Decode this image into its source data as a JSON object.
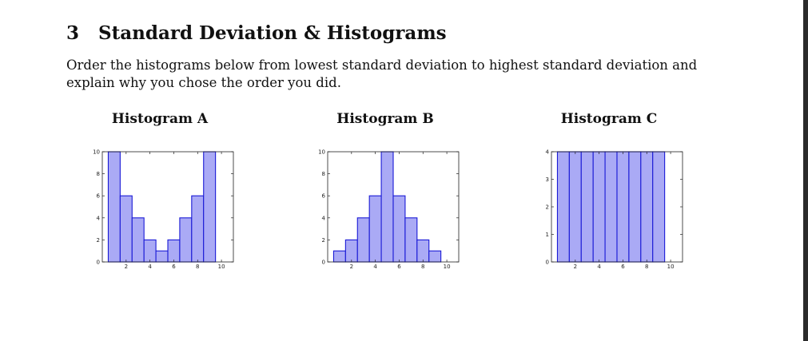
{
  "section": {
    "number": "3",
    "title": "Standard Deviation & Histograms",
    "prompt": "Order the histograms below from lowest standard deviation to highest standard deviation and explain why you chose the order you did."
  },
  "colors": {
    "bar_fill": "#aaaaf5",
    "bar_stroke": "#1a1ad6",
    "axis": "#222222",
    "edge_bar": "#2b2b2b"
  },
  "chart_data": [
    {
      "type": "bar",
      "title": "Histogram A",
      "x": [
        1,
        2,
        3,
        4,
        5,
        6,
        7,
        8,
        9
      ],
      "values": [
        10,
        6,
        4,
        2,
        1,
        2,
        4,
        6,
        10
      ],
      "xlim": [
        0,
        11
      ],
      "ylim": [
        0,
        10
      ],
      "xticks": [
        "2",
        "4",
        "6",
        "8",
        "10"
      ],
      "yticks": [
        "0",
        "2",
        "4",
        "6",
        "8",
        "10"
      ]
    },
    {
      "type": "bar",
      "title": "Histogram B",
      "x": [
        1,
        2,
        3,
        4,
        5,
        6,
        7,
        8,
        9
      ],
      "values": [
        1,
        2,
        4,
        6,
        10,
        6,
        4,
        2,
        1
      ],
      "xlim": [
        0,
        11
      ],
      "ylim": [
        0,
        10
      ],
      "xticks": [
        "2",
        "4",
        "6",
        "8",
        "10"
      ],
      "yticks": [
        "0",
        "2",
        "4",
        "6",
        "8",
        "10"
      ]
    },
    {
      "type": "bar",
      "title": "Histogram C",
      "x": [
        1,
        2,
        3,
        4,
        5,
        6,
        7,
        8,
        9
      ],
      "values": [
        4,
        4,
        4,
        4,
        4,
        4,
        4,
        4,
        4
      ],
      "xlim": [
        0,
        11
      ],
      "ylim": [
        0,
        4
      ],
      "xticks": [
        "2",
        "4",
        "6",
        "8",
        "10"
      ],
      "yticks": [
        "0",
        "1",
        "2",
        "3",
        "4"
      ]
    }
  ]
}
